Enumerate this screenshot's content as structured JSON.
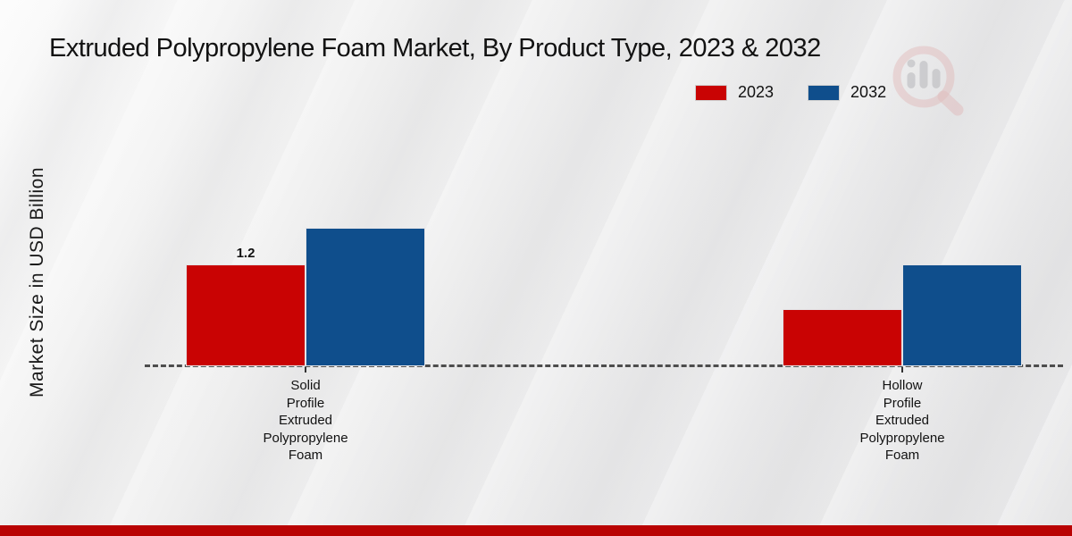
{
  "chart_data": {
    "type": "bar",
    "title": "Extruded Polypropylene Foam Market, By Product Type, 2023 & 2032",
    "xlabel": "",
    "ylabel": "Market Size in USD Billion",
    "units": "USD Billion",
    "categories": [
      "Solid Profile Extruded Polypropylene Foam",
      "Hollow Profile Extruded Polypropylene Foam"
    ],
    "category_label_lines": [
      [
        "Solid",
        "Profile",
        "Extruded",
        "Polypropylene",
        "Foam"
      ],
      [
        "Hollow",
        "Profile",
        "Extruded",
        "Polypropylene",
        "Foam"
      ]
    ],
    "series": [
      {
        "name": "2023",
        "color": "#c90303",
        "values": [
          1.2,
          0.67
        ],
        "value_labels": [
          "1.2",
          ""
        ]
      },
      {
        "name": "2032",
        "color": "#0f4e8c",
        "values": [
          1.63,
          1.2
        ],
        "value_labels": [
          "",
          ""
        ]
      }
    ],
    "ylim": [
      0,
      1.8
    ],
    "grid": false,
    "baseline_style": "dashed",
    "legend_position": "top-right"
  },
  "footer": {
    "bar_color": "#b90303"
  },
  "watermark": {
    "icon": "magnifier-bar-chart-logo"
  }
}
